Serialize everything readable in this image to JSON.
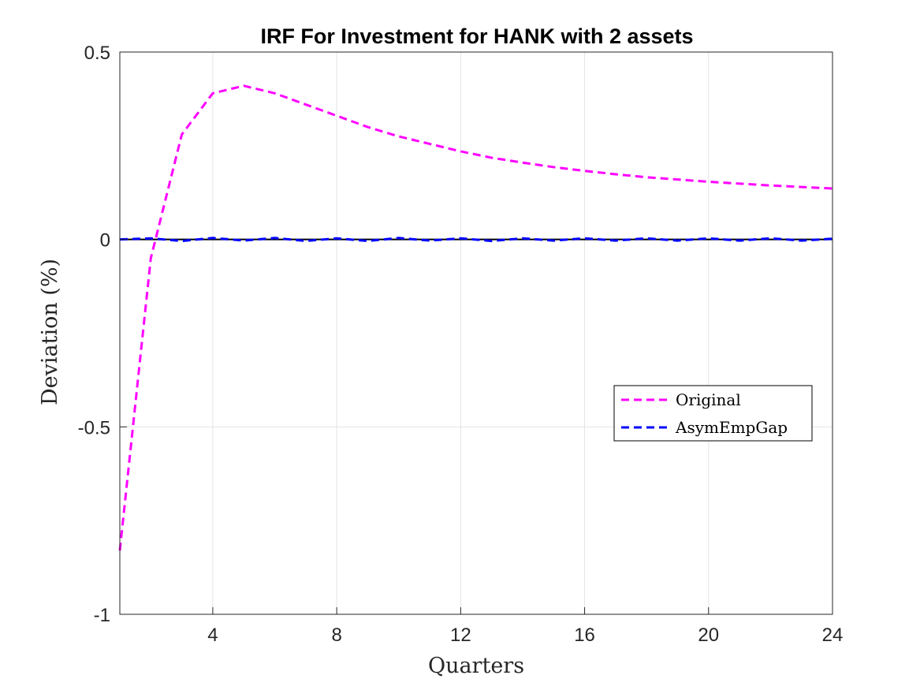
{
  "chart_data": {
    "type": "line",
    "title": "IRF For Investment for HANK with 2 assets",
    "xlabel": "Quarters",
    "ylabel": "Deviation (%)",
    "xlim": [
      1,
      24
    ],
    "ylim": [
      -1,
      0.5
    ],
    "xticks": [
      4,
      8,
      12,
      16,
      20,
      24
    ],
    "xtick_labels": [
      "4",
      "8",
      "12",
      "16",
      "20",
      "24"
    ],
    "yticks": [
      -1,
      -0.5,
      0,
      0.5
    ],
    "ytick_labels": [
      "-1",
      "-0.5",
      "0",
      "0.5"
    ],
    "grid": true,
    "legend_position": "right-middle",
    "x": [
      1,
      2,
      3,
      4,
      5,
      6,
      7,
      8,
      9,
      10,
      11,
      12,
      13,
      14,
      15,
      16,
      17,
      18,
      19,
      20,
      21,
      22,
      23,
      24
    ],
    "series": [
      {
        "name": "Original",
        "color": "#ff00ff",
        "style": "dashed",
        "values": [
          -0.83,
          -0.05,
          0.28,
          0.39,
          0.41,
          0.39,
          0.36,
          0.33,
          0.3,
          0.275,
          0.255,
          0.235,
          0.218,
          0.205,
          0.193,
          0.183,
          0.174,
          0.166,
          0.16,
          0.154,
          0.149,
          0.144,
          0.14,
          0.136
        ]
      },
      {
        "name": "AsymEmpGap",
        "color": "#0000ff",
        "style": "dashed",
        "values": [
          0.0,
          0.003,
          -0.004,
          0.004,
          -0.003,
          0.004,
          -0.004,
          0.003,
          -0.004,
          0.004,
          -0.003,
          0.003,
          -0.004,
          0.003,
          -0.003,
          0.003,
          -0.003,
          0.003,
          -0.003,
          0.003,
          -0.003,
          0.003,
          -0.003,
          0.002
        ]
      }
    ],
    "reference_line": {
      "y": 0,
      "color": "#000000"
    }
  }
}
